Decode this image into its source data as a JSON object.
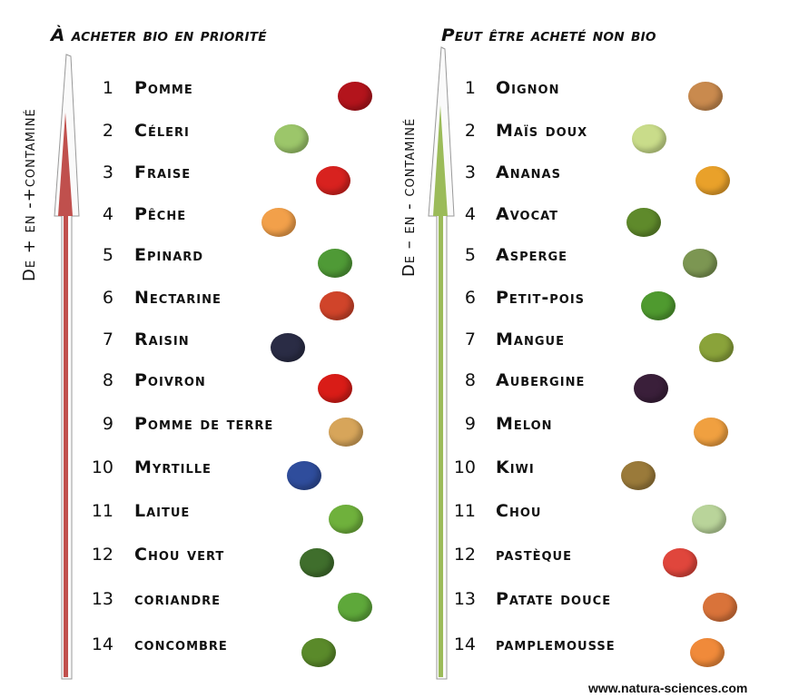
{
  "left": {
    "title": "À acheter  bio en priorité",
    "axis_label": "De + en -+contaminé",
    "arrow_color": "#c0504d",
    "items": [
      {
        "rank": "1",
        "name": "Pomme",
        "image": "apple",
        "color": "#b3141c"
      },
      {
        "rank": "2",
        "name": "Céleri",
        "image": "celery",
        "color": "#9cc66a"
      },
      {
        "rank": "3",
        "name": "Fraise",
        "image": "strawberry",
        "color": "#d8221f"
      },
      {
        "rank": "4",
        "name": "Pêche",
        "image": "peach",
        "color": "#f2a04a"
      },
      {
        "rank": "5",
        "name": "Epinard",
        "image": "spinach",
        "color": "#4f9a36"
      },
      {
        "rank": "6",
        "name": "Nectarine",
        "image": "nectarine",
        "color": "#d0442a"
      },
      {
        "rank": "7",
        "name": "Raisin",
        "image": "grapes",
        "color": "#2a2c45"
      },
      {
        "rank": "8",
        "name": "Poivron",
        "image": "bell-pepper",
        "color": "#d91c17"
      },
      {
        "rank": "9",
        "name": "Pomme de terre",
        "image": "potato",
        "color": "#d7a55a"
      },
      {
        "rank": "10",
        "name": "Myrtille",
        "image": "blueberry",
        "color": "#2f4d9c"
      },
      {
        "rank": "11",
        "name": "Laitue",
        "image": "lettuce",
        "color": "#6fb13c"
      },
      {
        "rank": "12",
        "name": "Chou vert",
        "image": "kale",
        "color": "#3f6e2c"
      },
      {
        "rank": "13",
        "name": "coriandre",
        "image": "coriander",
        "color": "#5ea83a"
      },
      {
        "rank": "14",
        "name": "concombre",
        "image": "cucumber",
        "color": "#5a8a2a"
      }
    ]
  },
  "right": {
    "title": "Peut être acheté non bio",
    "axis_label": "De – en - contaminé",
    "arrow_color": "#9bbb59",
    "items": [
      {
        "rank": "1",
        "name": "Oignon",
        "image": "onion",
        "color": "#c98a4e"
      },
      {
        "rank": "2",
        "name": "Maïs doux",
        "image": "sweet-corn",
        "color": "#c9dc8a"
      },
      {
        "rank": "3",
        "name": "Ananas",
        "image": "pineapple",
        "color": "#e9a12a"
      },
      {
        "rank": "4",
        "name": "Avocat",
        "image": "avocado",
        "color": "#5f8a2b"
      },
      {
        "rank": "5",
        "name": "Asperge",
        "image": "asparagus",
        "color": "#7c9652"
      },
      {
        "rank": "6",
        "name": "Petit-pois",
        "image": "peas",
        "color": "#4f9a2f"
      },
      {
        "rank": "7",
        "name": "Mangue",
        "image": "mango",
        "color": "#8aa33a"
      },
      {
        "rank": "8",
        "name": "Aubergine",
        "image": "eggplant",
        "color": "#3a1f3a"
      },
      {
        "rank": "9",
        "name": "Melon",
        "image": "melon",
        "color": "#f0a040"
      },
      {
        "rank": "10",
        "name": "Kiwi",
        "image": "kiwi",
        "color": "#9a7a3a"
      },
      {
        "rank": "11",
        "name": "Chou",
        "image": "cabbage",
        "color": "#b9d49a"
      },
      {
        "rank": "12",
        "name": "pastèque",
        "image": "watermelon",
        "color": "#e0463c"
      },
      {
        "rank": "13",
        "name": "Patate douce",
        "image": "sweet-potato",
        "color": "#d9733a"
      },
      {
        "rank": "14",
        "name": "pamplemousse",
        "image": "grapefruit",
        "color": "#f08a3a"
      }
    ]
  },
  "footer": "www.natura-sciences.com"
}
